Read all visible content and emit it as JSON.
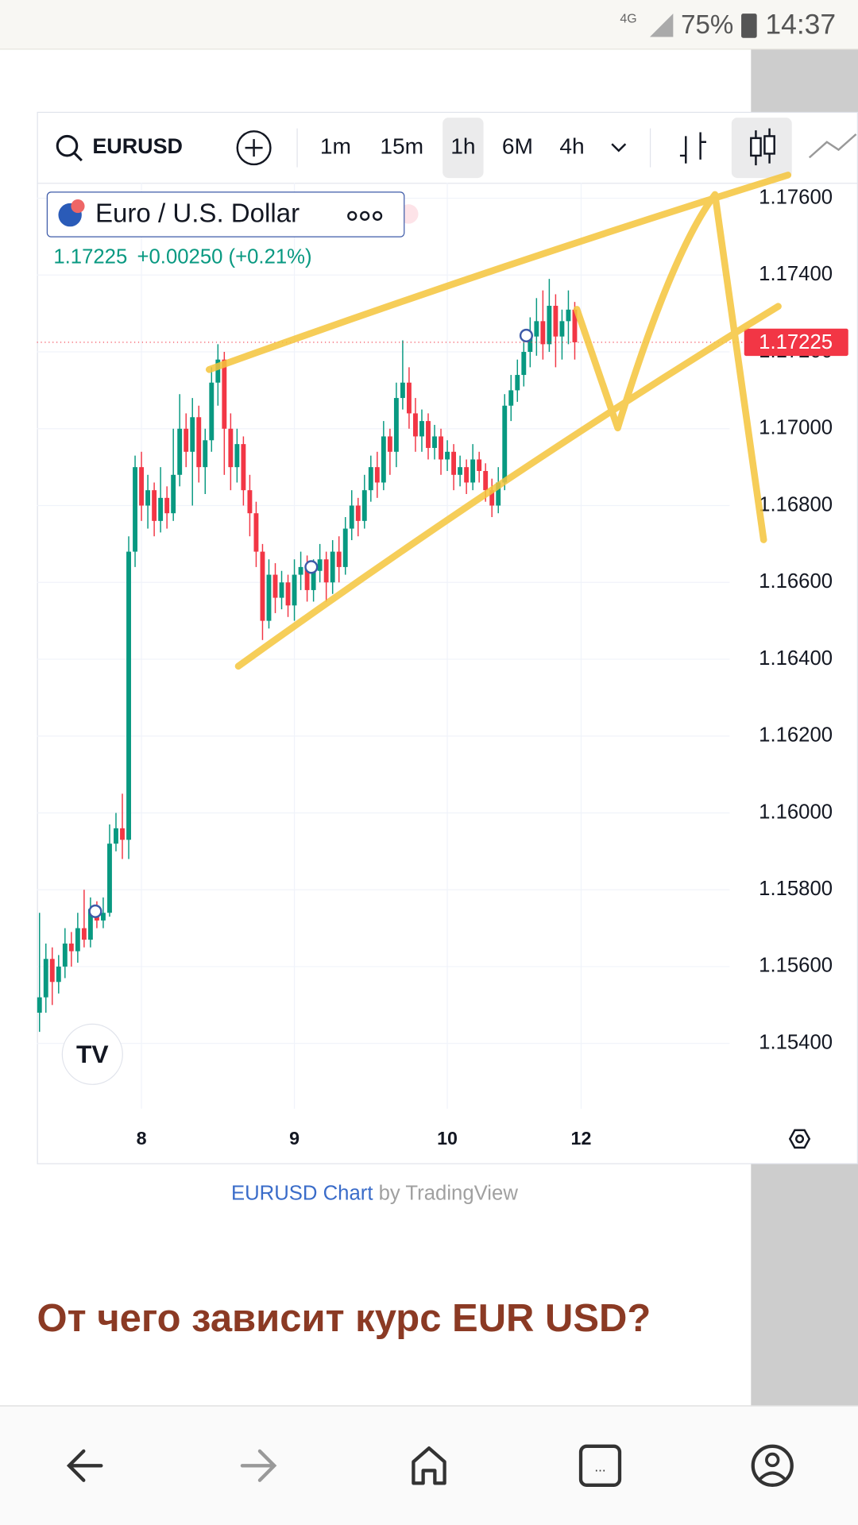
{
  "status_bar": {
    "network": "4G",
    "battery": "75%",
    "time": "14:37"
  },
  "toolbar": {
    "symbol": "EURUSD",
    "intervals": [
      "1m",
      "15m",
      "1h",
      "6M",
      "4h"
    ],
    "active_interval": 2
  },
  "legend": {
    "name": "Euro / U.S. Dollar",
    "price": "1.17225",
    "change": "+0.00250 (+0.21%)"
  },
  "chart_data": {
    "type": "candlestick",
    "up_color": "#089981",
    "down_color": "#f23645",
    "grid": true,
    "xlim": [
      -0.4,
      108.3
    ],
    "ylim": [
      1.1523,
      1.1764
    ],
    "xticks": [
      {
        "value": 16,
        "label": "8"
      },
      {
        "value": 40,
        "label": "9"
      },
      {
        "value": 64,
        "label": "10"
      },
      {
        "value": 85,
        "label": "12"
      }
    ],
    "yticks": [
      {
        "value": 1.154,
        "label": "1.15400"
      },
      {
        "value": 1.156,
        "label": "1.15600"
      },
      {
        "value": 1.158,
        "label": "1.15800"
      },
      {
        "value": 1.16,
        "label": "1.16000"
      },
      {
        "value": 1.162,
        "label": "1.16200"
      },
      {
        "value": 1.164,
        "label": "1.16400"
      },
      {
        "value": 1.166,
        "label": "1.16600"
      },
      {
        "value": 1.168,
        "label": "1.16800"
      },
      {
        "value": 1.17,
        "label": "1.17000"
      },
      {
        "value": 1.172,
        "label": "1.17200"
      },
      {
        "value": 1.174,
        "label": "1.17400"
      },
      {
        "value": 1.176,
        "label": "1.17600"
      }
    ],
    "last_price": 1.17225,
    "open": [
      1.1548,
      1.1552,
      1.1562,
      1.1556,
      1.156,
      1.1566,
      1.1564,
      1.157,
      1.1567,
      1.1575,
      1.1572,
      1.1574,
      1.1592,
      1.1596,
      1.1593,
      1.1668,
      1.169,
      1.168,
      1.1684,
      1.1676,
      1.1682,
      1.1678,
      1.1688,
      1.17,
      1.1694,
      1.1703,
      1.169,
      1.1697,
      1.1712,
      1.1718,
      1.17,
      1.169,
      1.1696,
      1.1684,
      1.1678,
      1.1668,
      1.165,
      1.1662,
      1.1656,
      1.166,
      1.1654,
      1.1662,
      1.1664,
      1.1658,
      1.1663,
      1.1666,
      1.166,
      1.1668,
      1.1664,
      1.1674,
      1.168,
      1.1676,
      1.1684,
      1.169,
      1.1686,
      1.1698,
      1.1694,
      1.1708,
      1.1712,
      1.1704,
      1.1698,
      1.1702,
      1.1695,
      1.1698,
      1.1692,
      1.1694,
      1.1688,
      1.169,
      1.1686,
      1.1692,
      1.1689,
      1.1684,
      1.168,
      1.1686,
      1.1706,
      1.171,
      1.1714,
      1.172,
      1.1724,
      1.1728,
      1.1722,
      1.1732,
      1.1724,
      1.1728,
      1.1731
    ],
    "high": [
      1.1574,
      1.1566,
      1.1565,
      1.1563,
      1.157,
      1.1569,
      1.1574,
      1.158,
      1.1578,
      1.1577,
      1.1578,
      1.1597,
      1.16,
      1.1605,
      1.1672,
      1.1693,
      1.1694,
      1.1688,
      1.1686,
      1.169,
      1.1685,
      1.17,
      1.1709,
      1.1704,
      1.1708,
      1.1706,
      1.17,
      1.1716,
      1.1722,
      1.172,
      1.1704,
      1.17,
      1.1698,
      1.1688,
      1.1681,
      1.167,
      1.1666,
      1.1665,
      1.1663,
      1.1662,
      1.1666,
      1.1668,
      1.1667,
      1.1666,
      1.167,
      1.1668,
      1.1671,
      1.1672,
      1.1677,
      1.1684,
      1.1682,
      1.1688,
      1.1693,
      1.1694,
      1.1702,
      1.17,
      1.1712,
      1.1723,
      1.1716,
      1.1708,
      1.1705,
      1.1704,
      1.1701,
      1.17,
      1.1697,
      1.1696,
      1.1693,
      1.1692,
      1.1696,
      1.1694,
      1.1691,
      1.1687,
      1.169,
      1.1709,
      1.1714,
      1.1718,
      1.1724,
      1.1729,
      1.1734,
      1.1736,
      1.1739,
      1.1735,
      1.1731,
      1.1736,
      1.1733
    ],
    "low": [
      1.1543,
      1.1548,
      1.155,
      1.1553,
      1.1557,
      1.156,
      1.1561,
      1.1565,
      1.1565,
      1.157,
      1.157,
      1.1573,
      1.159,
      1.1588,
      1.1588,
      1.1664,
      1.1676,
      1.1674,
      1.1672,
      1.1673,
      1.1674,
      1.1676,
      1.1685,
      1.169,
      1.168,
      1.1686,
      1.1683,
      1.1694,
      1.1706,
      1.1688,
      1.1684,
      1.1686,
      1.168,
      1.1672,
      1.1664,
      1.1645,
      1.1648,
      1.1652,
      1.1653,
      1.1651,
      1.165,
      1.1658,
      1.1655,
      1.1655,
      1.166,
      1.1655,
      1.1657,
      1.166,
      1.1662,
      1.1671,
      1.1672,
      1.1674,
      1.1681,
      1.1682,
      1.1684,
      1.1688,
      1.169,
      1.1705,
      1.17,
      1.1694,
      1.1694,
      1.1692,
      1.1692,
      1.1688,
      1.1689,
      1.1684,
      1.1685,
      1.1683,
      1.1684,
      1.1686,
      1.1681,
      1.1677,
      1.1678,
      1.1684,
      1.1702,
      1.1707,
      1.1711,
      1.1716,
      1.1719,
      1.1718,
      1.172,
      1.1716,
      1.1718,
      1.1722,
      1.1718
    ],
    "close": [
      1.1552,
      1.1562,
      1.1556,
      1.156,
      1.1566,
      1.1564,
      1.157,
      1.1567,
      1.1575,
      1.1572,
      1.1574,
      1.1592,
      1.1596,
      1.1593,
      1.1668,
      1.169,
      1.168,
      1.1684,
      1.1676,
      1.1682,
      1.1678,
      1.1688,
      1.17,
      1.1694,
      1.1703,
      1.169,
      1.1697,
      1.1712,
      1.1718,
      1.17,
      1.169,
      1.1696,
      1.1684,
      1.1678,
      1.1668,
      1.165,
      1.1662,
      1.1656,
      1.166,
      1.1654,
      1.1662,
      1.1664,
      1.1658,
      1.1663,
      1.1666,
      1.166,
      1.1668,
      1.1664,
      1.1674,
      1.168,
      1.1676,
      1.1684,
      1.169,
      1.1686,
      1.1698,
      1.1694,
      1.1708,
      1.1712,
      1.1704,
      1.1698,
      1.1702,
      1.1695,
      1.1698,
      1.1692,
      1.1694,
      1.1688,
      1.169,
      1.1686,
      1.1692,
      1.1689,
      1.1684,
      1.168,
      1.1686,
      1.1706,
      1.171,
      1.1714,
      1.172,
      1.1724,
      1.1728,
      1.1722,
      1.1732,
      1.1724,
      1.1728,
      1.1731,
      1.17225
    ]
  },
  "caption": {
    "link": "EURUSD Chart",
    "suffix": " by TradingView"
  },
  "heading": "От чего зависит курс EUR USD?"
}
